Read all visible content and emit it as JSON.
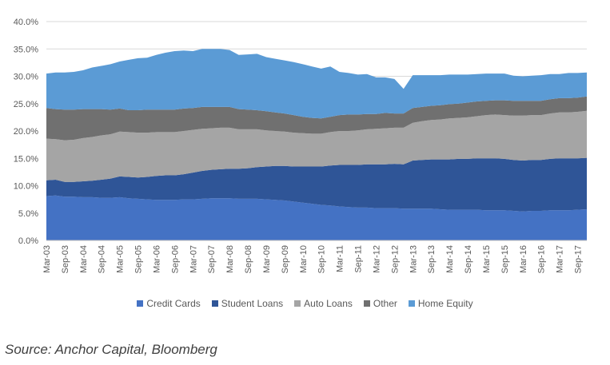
{
  "chart_data": {
    "type": "area",
    "stacked": true,
    "x": [
      "Mar-03",
      "Jun-03",
      "Sep-03",
      "Dec-03",
      "Mar-04",
      "Jun-04",
      "Sep-04",
      "Dec-04",
      "Mar-05",
      "Jun-05",
      "Sep-05",
      "Dec-05",
      "Mar-06",
      "Jun-06",
      "Sep-06",
      "Dec-06",
      "Mar-07",
      "Jun-07",
      "Sep-07",
      "Dec-07",
      "Mar-08",
      "Jun-08",
      "Sep-08",
      "Dec-08",
      "Mar-09",
      "Jun-09",
      "Sep-09",
      "Dec-09",
      "Mar-10",
      "Jun-10",
      "Sep-10",
      "Dec-10",
      "Mar-11",
      "Jun-11",
      "Sep-11",
      "Dec-11",
      "Mar-12",
      "Jun-12",
      "Sep-12",
      "Dec-12",
      "Mar-13",
      "Jun-13",
      "Sep-13",
      "Dec-13",
      "Mar-14",
      "Jun-14",
      "Sep-14",
      "Dec-14",
      "Mar-15",
      "Jun-15",
      "Sep-15",
      "Dec-15",
      "Mar-16",
      "Jun-16",
      "Sep-16",
      "Dec-16",
      "Mar-17",
      "Jun-17",
      "Sep-17",
      "Dec-17"
    ],
    "x_tick_labels": [
      "Mar-03",
      "Sep-03",
      "Mar-04",
      "Sep-04",
      "Mar-05",
      "Sep-05",
      "Mar-06",
      "Sep-06",
      "Mar-07",
      "Sep-07",
      "Mar-08",
      "Sep-08",
      "Mar-09",
      "Sep-09",
      "Mar-10",
      "Sep-10",
      "Mar-11",
      "Sep-11",
      "Mar-12",
      "Sep-12",
      "Mar-13",
      "Sep-13",
      "Mar-14",
      "Sep-14",
      "Mar-15",
      "Sep-15",
      "Mar-16",
      "Sep-16",
      "Mar-17",
      "Sep-17"
    ],
    "y_tick_labels": [
      "0.0%",
      "5.0%",
      "10.0%",
      "15.0%",
      "20.0%",
      "25.0%",
      "30.0%",
      "35.0%",
      "40.0%"
    ],
    "ylim": [
      0,
      40
    ],
    "y_unit": "%",
    "grid": "horizontal",
    "legend_position": "bottom",
    "series": [
      {
        "name": "Credit Cards",
        "color": "#4472C4",
        "values": [
          8.1,
          8.2,
          8.0,
          8.0,
          7.9,
          7.9,
          7.8,
          7.8,
          7.9,
          7.7,
          7.6,
          7.5,
          7.4,
          7.4,
          7.4,
          7.5,
          7.5,
          7.6,
          7.7,
          7.7,
          7.7,
          7.6,
          7.6,
          7.6,
          7.5,
          7.4,
          7.3,
          7.1,
          6.9,
          6.7,
          6.5,
          6.4,
          6.2,
          6.1,
          6.0,
          6.0,
          5.9,
          5.9,
          5.9,
          5.8,
          5.8,
          5.8,
          5.8,
          5.7,
          5.6,
          5.6,
          5.6,
          5.6,
          5.5,
          5.5,
          5.5,
          5.4,
          5.3,
          5.4,
          5.4,
          5.5,
          5.5,
          5.5,
          5.6,
          5.7
        ]
      },
      {
        "name": "Student Loans",
        "color": "#2F5597",
        "values": [
          2.9,
          2.9,
          2.7,
          2.7,
          2.9,
          3.0,
          3.3,
          3.5,
          3.8,
          3.9,
          3.9,
          4.1,
          4.4,
          4.5,
          4.5,
          4.6,
          4.9,
          5.1,
          5.2,
          5.3,
          5.4,
          5.5,
          5.6,
          5.8,
          6.0,
          6.2,
          6.3,
          6.4,
          6.6,
          6.8,
          7.0,
          7.3,
          7.6,
          7.7,
          7.8,
          7.9,
          8.0,
          8.0,
          8.1,
          8.1,
          8.8,
          8.9,
          9.0,
          9.1,
          9.2,
          9.3,
          9.3,
          9.4,
          9.5,
          9.5,
          9.4,
          9.3,
          9.3,
          9.3,
          9.3,
          9.4,
          9.5,
          9.5,
          9.4,
          9.4
        ]
      },
      {
        "name": "Auto Loans",
        "color": "#A5A5A5",
        "values": [
          7.6,
          7.4,
          7.6,
          7.7,
          7.9,
          8.0,
          8.1,
          8.1,
          8.2,
          8.2,
          8.2,
          8.1,
          8.0,
          7.9,
          7.9,
          7.9,
          7.8,
          7.7,
          7.6,
          7.6,
          7.5,
          7.2,
          7.1,
          6.9,
          6.6,
          6.4,
          6.3,
          6.2,
          6.1,
          6.0,
          6.0,
          6.1,
          6.2,
          6.2,
          6.3,
          6.4,
          6.5,
          6.6,
          6.6,
          6.7,
          6.9,
          7.1,
          7.2,
          7.3,
          7.5,
          7.5,
          7.6,
          7.7,
          7.9,
          8.0,
          8.0,
          8.1,
          8.2,
          8.2,
          8.2,
          8.3,
          8.4,
          8.4,
          8.5,
          8.6
        ]
      },
      {
        "name": "Other",
        "color": "#707070",
        "values": [
          5.6,
          5.5,
          5.6,
          5.5,
          5.3,
          5.1,
          4.8,
          4.5,
          4.2,
          4.0,
          4.1,
          4.2,
          4.1,
          4.1,
          4.1,
          4.1,
          4.0,
          4.0,
          3.9,
          3.8,
          3.8,
          3.7,
          3.6,
          3.5,
          3.5,
          3.4,
          3.3,
          3.2,
          3.0,
          2.9,
          2.8,
          2.8,
          2.9,
          3.0,
          2.9,
          2.8,
          2.7,
          2.8,
          2.6,
          2.6,
          2.7,
          2.6,
          2.6,
          2.6,
          2.6,
          2.6,
          2.7,
          2.7,
          2.6,
          2.6,
          2.7,
          2.7,
          2.7,
          2.6,
          2.6,
          2.6,
          2.6,
          2.6,
          2.6,
          2.6
        ]
      },
      {
        "name": "Home Equity",
        "color": "#5B9BD5",
        "values": [
          6.3,
          6.7,
          6.8,
          6.9,
          7.1,
          7.6,
          7.9,
          8.3,
          8.6,
          9.2,
          9.5,
          9.5,
          10.0,
          10.4,
          10.7,
          10.6,
          10.4,
          10.6,
          10.6,
          10.6,
          10.4,
          9.9,
          10.1,
          10.3,
          9.9,
          9.8,
          9.7,
          9.7,
          9.6,
          9.4,
          9.1,
          9.2,
          7.9,
          7.6,
          7.3,
          7.3,
          6.7,
          6.5,
          6.3,
          4.5,
          6.0,
          5.8,
          5.6,
          5.5,
          5.4,
          5.3,
          5.1,
          5.0,
          5.0,
          4.9,
          4.9,
          4.6,
          4.5,
          4.6,
          4.7,
          4.6,
          4.4,
          4.6,
          4.5,
          4.4
        ]
      }
    ]
  },
  "source_text": "Source: Anchor Capital, Bloomberg"
}
